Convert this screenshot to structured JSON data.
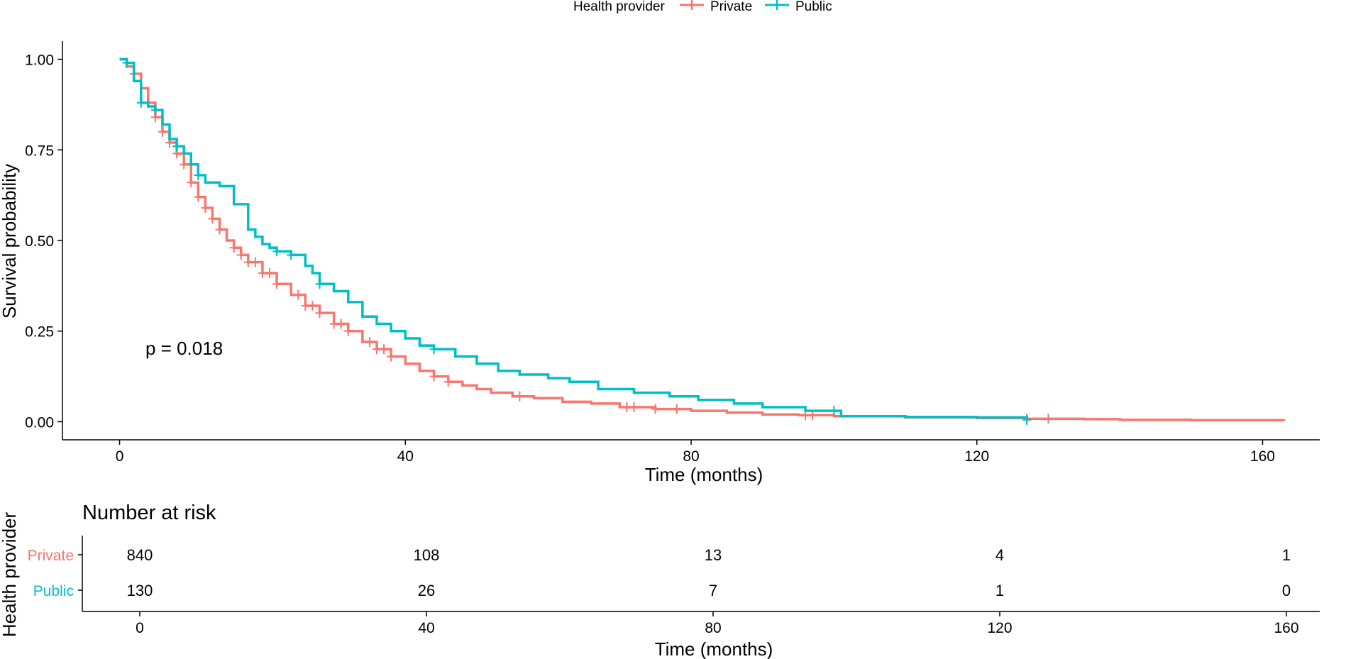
{
  "chart_data": [
    {
      "type": "line",
      "step": true,
      "legend": {
        "title": "Health provider",
        "position": "top",
        "entries": [
          "Private",
          "Public"
        ]
      },
      "xlabel": "Time (months)",
      "ylabel": "Survival probability",
      "xlim": [
        -8,
        168
      ],
      "ylim": [
        -0.05,
        1.05
      ],
      "xticks": [
        0,
        40,
        80,
        120,
        160
      ],
      "yticks": [
        0.0,
        0.25,
        0.5,
        0.75,
        1.0
      ],
      "ytick_labels": [
        "0.00",
        "0.25",
        "0.50",
        "0.75",
        "1.00"
      ],
      "annotation": "p = 0.018",
      "grid": false,
      "series": [
        {
          "name": "Private",
          "color": "#F8766D",
          "x": [
            0,
            1,
            2,
            3,
            4,
            5,
            6,
            7,
            8,
            9,
            10,
            11,
            12,
            13,
            14,
            15,
            16,
            17,
            18,
            20,
            22,
            24,
            26,
            28,
            30,
            32,
            34,
            36,
            38,
            40,
            42,
            44,
            46,
            48,
            50,
            52,
            55,
            58,
            62,
            66,
            70,
            75,
            80,
            85,
            90,
            95,
            100,
            110,
            120,
            127,
            135,
            140,
            150,
            163
          ],
          "y": [
            1.0,
            0.98,
            0.96,
            0.92,
            0.88,
            0.84,
            0.8,
            0.77,
            0.74,
            0.71,
            0.66,
            0.62,
            0.59,
            0.56,
            0.53,
            0.5,
            0.48,
            0.46,
            0.44,
            0.41,
            0.38,
            0.35,
            0.32,
            0.3,
            0.27,
            0.25,
            0.22,
            0.2,
            0.18,
            0.16,
            0.14,
            0.125,
            0.11,
            0.1,
            0.09,
            0.08,
            0.07,
            0.065,
            0.055,
            0.05,
            0.04,
            0.035,
            0.03,
            0.025,
            0.02,
            0.018,
            0.015,
            0.012,
            0.01,
            0.008,
            0.007,
            0.005,
            0.004,
            0.003
          ],
          "censor_x": [
            2,
            4,
            5,
            6,
            7,
            8,
            9,
            10,
            11,
            12,
            13,
            14,
            16,
            17,
            18,
            19,
            20,
            21,
            22,
            25,
            26,
            27,
            28,
            30,
            31,
            32,
            35,
            36,
            37,
            38,
            44,
            46,
            56,
            71,
            72,
            75,
            78,
            96,
            97,
            127,
            130
          ]
        },
        {
          "name": "Public",
          "color": "#00BFC4",
          "x": [
            0,
            1,
            2,
            3,
            4,
            5,
            6,
            7,
            8,
            9,
            10,
            11,
            12,
            14,
            16,
            18,
            19,
            20,
            21,
            22,
            24,
            26,
            27,
            28,
            30,
            32,
            34,
            36,
            38,
            40,
            42,
            44,
            47,
            50,
            53,
            56,
            60,
            63,
            67,
            72,
            77,
            81,
            86,
            90,
            96,
            101,
            110,
            120,
            127
          ],
          "y": [
            1.0,
            0.99,
            0.94,
            0.88,
            0.87,
            0.86,
            0.82,
            0.78,
            0.76,
            0.74,
            0.71,
            0.68,
            0.66,
            0.65,
            0.6,
            0.53,
            0.51,
            0.49,
            0.48,
            0.47,
            0.46,
            0.43,
            0.41,
            0.38,
            0.36,
            0.33,
            0.29,
            0.27,
            0.25,
            0.23,
            0.21,
            0.2,
            0.18,
            0.16,
            0.14,
            0.13,
            0.12,
            0.11,
            0.09,
            0.08,
            0.07,
            0.06,
            0.05,
            0.04,
            0.03,
            0.015,
            0.013,
            0.012,
            0.005
          ],
          "censor_x": [
            1,
            3,
            5,
            8,
            11,
            22,
            24,
            28,
            44,
            100,
            127
          ]
        }
      ]
    },
    {
      "type": "table",
      "title": "Number at risk",
      "ylabel": "Health provider",
      "xlabel": "Time (months)",
      "xlim": [
        -8,
        168
      ],
      "xticks": [
        0,
        40,
        80,
        120,
        160
      ],
      "rows": [
        {
          "label": "Private",
          "color": "#F8766D",
          "values": [
            840,
            108,
            13,
            4,
            1
          ]
        },
        {
          "label": "Public",
          "color": "#00BFC4",
          "values": [
            130,
            26,
            7,
            1,
            0
          ]
        }
      ]
    }
  ]
}
